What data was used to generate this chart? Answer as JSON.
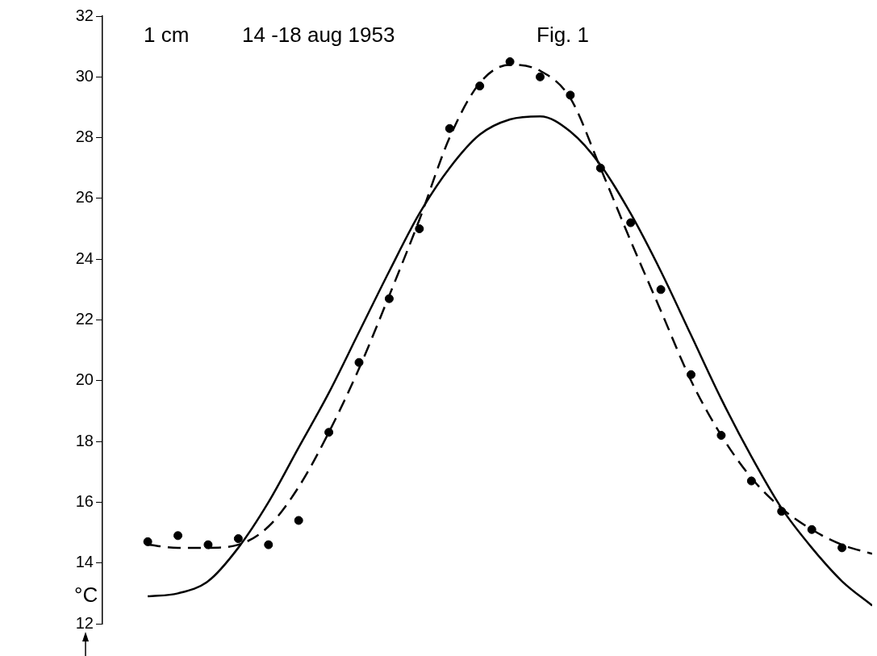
{
  "chart_data": {
    "type": "line",
    "annotations": [
      "1 cm",
      "14 -18 aug 1953",
      "Fig. 1"
    ],
    "ylabel": "°C",
    "categories": [
      null,
      null,
      null,
      null,
      null,
      null,
      null,
      null,
      null,
      null,
      null,
      null,
      null,
      null,
      null,
      null,
      null,
      null,
      null,
      null,
      null,
      null,
      null,
      null,
      null
    ],
    "series": [
      {
        "type": "scatter",
        "color": "#000000",
        "marker": "circle",
        "values": [
          14.7,
          14.9,
          14.6,
          14.8,
          14.6,
          15.4,
          18.3,
          20.6,
          22.7,
          25.0,
          28.3,
          29.7,
          30.5,
          30.0,
          29.4,
          27.0,
          25.2,
          23.0,
          20.2,
          18.2,
          16.7,
          15.7,
          15.1,
          14.5,
          null
        ]
      },
      {
        "color": "#000000",
        "line_style": "dashed",
        "values": [
          14.6,
          14.5,
          14.5,
          14.6,
          15.2,
          16.5,
          18.3,
          20.4,
          22.8,
          25.3,
          28.0,
          29.8,
          30.4,
          30.2,
          29.3,
          27.0,
          24.6,
          22.3,
          20.0,
          18.2,
          16.8,
          15.8,
          15.1,
          14.6,
          14.3
        ]
      },
      {
        "color": "#000000",
        "line_style": "solid",
        "values": [
          12.9,
          13.0,
          13.4,
          14.5,
          16.0,
          17.8,
          19.6,
          21.6,
          23.6,
          25.5,
          27.0,
          28.1,
          28.6,
          28.7,
          28.2,
          27.1,
          25.5,
          23.6,
          21.5,
          19.4,
          17.5,
          15.8,
          14.5,
          13.4,
          12.6
        ]
      }
    ],
    "ylim": [
      12,
      32
    ],
    "yticks": [
      12,
      14,
      16,
      18,
      20,
      22,
      24,
      26,
      28,
      30,
      32
    ],
    "grid": false,
    "legend": false,
    "tick_labels": "y"
  }
}
